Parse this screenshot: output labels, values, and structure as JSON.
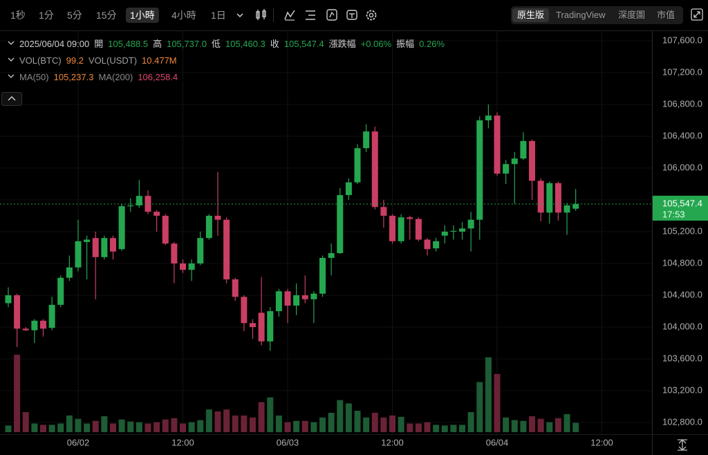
{
  "toolbar": {
    "timeframes": [
      "1秒",
      "1分",
      "5分",
      "15分",
      "1小時",
      "4小時",
      "1日"
    ],
    "active_timeframe": 4,
    "views": [
      "原生版",
      "TradingView",
      "深度圖",
      "市值"
    ],
    "active_view": 0
  },
  "info_rows": [
    [
      {
        "text": "2025/06/04 09:00",
        "color": "#d0d0d0"
      },
      {
        "text": "開",
        "color": "#d0d0d0"
      },
      {
        "text": "105,488.5",
        "color": "#25a750"
      },
      {
        "text": "高",
        "color": "#d0d0d0"
      },
      {
        "text": "105,737.0",
        "color": "#25a750"
      },
      {
        "text": "低",
        "color": "#d0d0d0"
      },
      {
        "text": "105,460.3",
        "color": "#25a750"
      },
      {
        "text": "收",
        "color": "#d0d0d0"
      },
      {
        "text": "105,547.4",
        "color": "#25a750"
      },
      {
        "text": "漲跌幅",
        "color": "#d0d0d0"
      },
      {
        "text": "+0.06%",
        "color": "#25a750"
      },
      {
        "text": "振幅",
        "color": "#d0d0d0"
      },
      {
        "text": "0.26%",
        "color": "#25a750"
      }
    ],
    [
      {
        "text": "VOL(BTC)",
        "color": "#a0a0a0"
      },
      {
        "text": "99.2",
        "color": "#f0883e"
      },
      {
        "text": "VOL(USDT)",
        "color": "#a0a0a0"
      },
      {
        "text": "10.477M",
        "color": "#f0883e"
      }
    ],
    [
      {
        "text": "MA(50)",
        "color": "#8a8a8a"
      },
      {
        "text": "105,237.3",
        "color": "#f0883e"
      },
      {
        "text": "MA(200)",
        "color": "#8a8a8a"
      },
      {
        "text": "106,258.4",
        "color": "#e0466e"
      }
    ]
  ],
  "chart_data": {
    "type": "candlestick",
    "up_color": "#25a750",
    "down_color": "#ca3f64",
    "volume_up_color": "#1d5c34",
    "volume_down_color": "#6a2236",
    "x": [
      -8,
      -7,
      -6,
      -5,
      -4,
      -3,
      -2,
      -1,
      0,
      1,
      2,
      3,
      4,
      5,
      6,
      7,
      8,
      9,
      10,
      11,
      12,
      13,
      14,
      15,
      16,
      17,
      18,
      19,
      20,
      21,
      22,
      23,
      24,
      25,
      26,
      27,
      28,
      29,
      30,
      31,
      32,
      33,
      34,
      35,
      36,
      37,
      38,
      39,
      40,
      41,
      42,
      43,
      44,
      45,
      46,
      47,
      48,
      49,
      50,
      51,
      52,
      53,
      54,
      55,
      56,
      57
    ],
    "open": [
      104300,
      104400,
      103980,
      103960,
      104080,
      103990,
      104280,
      104620,
      104750,
      105070,
      105120,
      104880,
      105120,
      104980,
      105520,
      105530,
      105650,
      105450,
      105400,
      105050,
      104800,
      104720,
      104800,
      105120,
      105400,
      105350,
      104600,
      104380,
      104050,
      104180,
      103820,
      104200,
      104450,
      104270,
      104400,
      104350,
      104420,
      104870,
      104930,
      105660,
      105820,
      106250,
      106460,
      105510,
      105400,
      105080,
      105380,
      105360,
      105100,
      104990,
      105150,
      105200,
      105200,
      105240,
      105350,
      106600,
      106660,
      105930,
      106050,
      106120,
      106340,
      105840,
      105440,
      105810,
      105440,
      105488.5
    ],
    "high": [
      104500,
      104420,
      104000,
      104100,
      104100,
      104380,
      104650,
      104900,
      105350,
      105150,
      105200,
      105150,
      105150,
      105550,
      105620,
      105850,
      105720,
      105470,
      105420,
      105070,
      104850,
      104850,
      105200,
      105420,
      105950,
      105380,
      104620,
      104400,
      104100,
      104630,
      104250,
      104480,
      104480,
      104550,
      104650,
      104450,
      104900,
      105050,
      105750,
      105870,
      106300,
      106550,
      106520,
      105600,
      105420,
      105420,
      105400,
      105380,
      105120,
      105120,
      105280,
      105280,
      105320,
      105450,
      106650,
      106800,
      106700,
      106100,
      106200,
      106450,
      106360,
      105870,
      105830,
      105830,
      105560,
      105737
    ],
    "low": [
      104250,
      103750,
      103950,
      103800,
      103880,
      103960,
      104250,
      104580,
      104700,
      104600,
      104350,
      104850,
      104850,
      104960,
      105450,
      105500,
      105420,
      105200,
      105030,
      104550,
      104680,
      104580,
      104780,
      105100,
      105150,
      104550,
      104330,
      103950,
      103850,
      103770,
      103700,
      104130,
      104050,
      104150,
      104300,
      104050,
      104380,
      104650,
      104920,
      105600,
      105800,
      106200,
      105480,
      105250,
      105050,
      105050,
      105100,
      105080,
      104900,
      104950,
      105050,
      105100,
      105100,
      104950,
      105100,
      106500,
      105900,
      105800,
      105550,
      106100,
      105600,
      105330,
      105300,
      105340,
      105160,
      105460.3
    ],
    "close": [
      104400,
      103980,
      103960,
      104080,
      103980,
      104280,
      104620,
      104750,
      105080,
      105100,
      104880,
      105120,
      104950,
      105520,
      105530,
      105650,
      105450,
      105400,
      105050,
      104800,
      104720,
      104800,
      105120,
      105400,
      105350,
      104600,
      104380,
      104050,
      104000,
      103820,
      104200,
      104450,
      104270,
      104400,
      104350,
      104420,
      104870,
      104930,
      105660,
      105820,
      106250,
      106460,
      105510,
      105400,
      105080,
      105380,
      105360,
      105100,
      104980,
      105080,
      105200,
      105210,
      105240,
      105350,
      106600,
      106660,
      105930,
      106050,
      106120,
      106340,
      105840,
      105440,
      105810,
      105440,
      105530,
      105547.4
    ],
    "volume": [
      71,
      822,
      213,
      92,
      78,
      78,
      92,
      177,
      142,
      92,
      120,
      170,
      92,
      135,
      113,
      106,
      92,
      106,
      135,
      149,
      92,
      106,
      128,
      241,
      220,
      241,
      177,
      177,
      156,
      319,
      369,
      177,
      106,
      120,
      120,
      106,
      156,
      206,
      341,
      305,
      227,
      156,
      206,
      156,
      177,
      163,
      92,
      92,
      106,
      78,
      71,
      78,
      78,
      213,
      532,
      795,
      618,
      156,
      128,
      120,
      170,
      142,
      106,
      149,
      192,
      99.2
    ],
    "xlim": [
      -8.95,
      65.74
    ],
    "xticks": [
      {
        "value": 0,
        "label": "06/02"
      },
      {
        "value": 12,
        "label": "12:00"
      },
      {
        "value": 24,
        "label": "06/03"
      },
      {
        "value": 36,
        "label": "12:00"
      },
      {
        "value": 48,
        "label": "06/04"
      },
      {
        "value": 60,
        "label": "12:00"
      }
    ],
    "ylim": [
      102652,
      107722
    ],
    "yticks": [
      {
        "value": 102800,
        "label": "102,800.0"
      },
      {
        "value": 103200,
        "label": "103,200.0"
      },
      {
        "value": 103600,
        "label": "103,600.0"
      },
      {
        "value": 104000,
        "label": "104,000.0"
      },
      {
        "value": 104400,
        "label": "104,400.0"
      },
      {
        "value": 104800,
        "label": "104,800.0"
      },
      {
        "value": 105200,
        "label": "105,200.0"
      },
      {
        "value": 105600,
        "label": "105,600.0"
      },
      {
        "value": 106000,
        "label": "106,000.0"
      },
      {
        "value": 106400,
        "label": "106,400.0"
      },
      {
        "value": 106800,
        "label": "106,800.0"
      },
      {
        "value": 107200,
        "label": "107,200.0"
      },
      {
        "value": 107600,
        "label": "107,600.0"
      }
    ],
    "last_price": {
      "value": 105547.4,
      "label": "105,547.4"
    },
    "countdown": "17:53",
    "grid": true
  }
}
